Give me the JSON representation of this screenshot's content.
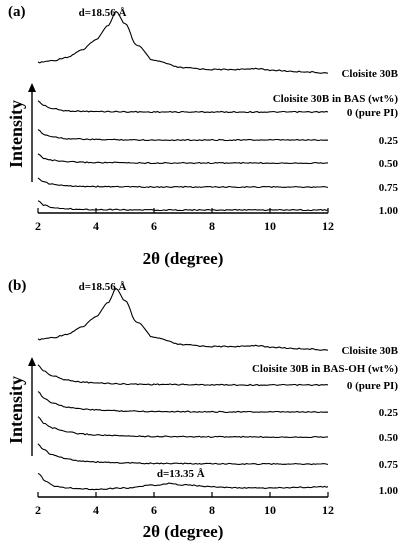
{
  "figure": {
    "x_axis_label": "2θ (degree)",
    "y_axis_label": "Intensity",
    "x_ticks": [
      "2",
      "4",
      "6",
      "8",
      "10",
      "12"
    ]
  },
  "chart_data": [
    {
      "type": "line",
      "panel_label": "(a)",
      "legend_title": "Cloisite 30B in BAS (wt%)",
      "xlim": [
        2,
        12
      ],
      "xlabel": "2θ (degree)",
      "ylabel": "Intensity",
      "series": [
        {
          "name": "Cloisite 30B",
          "x": [
            2,
            2.5,
            3,
            3.5,
            4,
            4.4,
            4.7,
            5.0,
            5.4,
            6,
            7,
            8,
            9,
            9.5,
            10,
            11,
            12
          ],
          "y": [
            0.3,
            0.35,
            0.45,
            0.65,
            0.95,
            1.35,
            1.75,
            1.4,
            0.8,
            0.35,
            0.15,
            0.1,
            0.1,
            0.13,
            0.08,
            0.04,
            0.0
          ],
          "peak_label": "d=18.56 Å"
        },
        {
          "name": "0 (pure PI)",
          "x": [
            2,
            2.2,
            2.5,
            3,
            4,
            6,
            8,
            10,
            12
          ],
          "y": [
            0.5,
            0.3,
            0.15,
            0.05,
            0.02,
            0.0,
            0.0,
            0.0,
            0.0
          ]
        },
        {
          "name": "0.25",
          "x": [
            2,
            2.2,
            2.5,
            3,
            4,
            6,
            8,
            10,
            12
          ],
          "y": [
            0.45,
            0.25,
            0.15,
            0.06,
            0.02,
            0.0,
            0.0,
            0.0,
            0.0
          ]
        },
        {
          "name": "0.50",
          "x": [
            2,
            2.2,
            2.5,
            3,
            4,
            6,
            8,
            10,
            12
          ],
          "y": [
            0.4,
            0.22,
            0.12,
            0.05,
            0.02,
            0.0,
            0.0,
            0.0,
            0.0
          ]
        },
        {
          "name": "0.75",
          "x": [
            2,
            2.2,
            2.5,
            3,
            4,
            6,
            8,
            10,
            12
          ],
          "y": [
            0.4,
            0.22,
            0.12,
            0.05,
            0.02,
            0.0,
            0.0,
            0.0,
            0.0
          ]
        },
        {
          "name": "1.00",
          "x": [
            2,
            2.2,
            2.5,
            3,
            4,
            6,
            8,
            10,
            12
          ],
          "y": [
            0.4,
            0.22,
            0.12,
            0.05,
            0.02,
            0.0,
            0.0,
            0.0,
            0.0
          ]
        }
      ]
    },
    {
      "type": "line",
      "panel_label": "(b)",
      "legend_title": "Cloisite 30B in BAS-OH (wt%)",
      "xlim": [
        2,
        12
      ],
      "xlabel": "2θ (degree)",
      "ylabel": "Intensity",
      "series": [
        {
          "name": "Cloisite 30B",
          "x": [
            2,
            2.5,
            3,
            3.5,
            4,
            4.4,
            4.7,
            5.0,
            5.4,
            6,
            7,
            8,
            9,
            9.5,
            10,
            11,
            12
          ],
          "y": [
            0.3,
            0.35,
            0.45,
            0.65,
            0.95,
            1.35,
            1.75,
            1.4,
            0.8,
            0.35,
            0.15,
            0.1,
            0.1,
            0.13,
            0.08,
            0.04,
            0.0
          ],
          "peak_label": "d=18.56 Å"
        },
        {
          "name": "0 (pure PI)",
          "x": [
            2,
            2.2,
            2.5,
            3,
            3.5,
            4,
            5,
            6,
            8,
            10,
            12
          ],
          "y": [
            1.0,
            0.7,
            0.45,
            0.25,
            0.15,
            0.1,
            0.05,
            0.03,
            0.01,
            0.0,
            0.0
          ]
        },
        {
          "name": "0.25",
          "x": [
            2,
            2.2,
            2.5,
            3,
            3.5,
            4,
            5,
            6,
            8,
            10,
            12
          ],
          "y": [
            1.0,
            0.7,
            0.45,
            0.25,
            0.15,
            0.1,
            0.05,
            0.03,
            0.01,
            0.0,
            0.0
          ]
        },
        {
          "name": "0.50",
          "x": [
            2,
            2.2,
            2.5,
            3,
            3.5,
            4,
            5,
            6,
            8,
            10,
            12
          ],
          "y": [
            1.0,
            0.7,
            0.45,
            0.25,
            0.15,
            0.1,
            0.05,
            0.03,
            0.01,
            0.0,
            0.0
          ]
        },
        {
          "name": "0.75",
          "x": [
            2,
            2.2,
            2.5,
            3,
            3.5,
            4,
            5,
            6,
            8,
            10,
            12
          ],
          "y": [
            1.0,
            0.7,
            0.45,
            0.25,
            0.15,
            0.1,
            0.05,
            0.03,
            0.01,
            0.0,
            0.0
          ]
        },
        {
          "name": "1.00",
          "x": [
            2,
            2.3,
            2.6,
            3,
            4,
            5,
            6,
            6.5,
            7,
            8,
            9,
            10,
            12
          ],
          "y": [
            0.4,
            0.2,
            0.1,
            0.05,
            0.02,
            0.05,
            0.12,
            0.16,
            0.13,
            0.08,
            0.05,
            0.05,
            0.08
          ],
          "peak_label": "d=13.35 Å"
        }
      ]
    }
  ]
}
